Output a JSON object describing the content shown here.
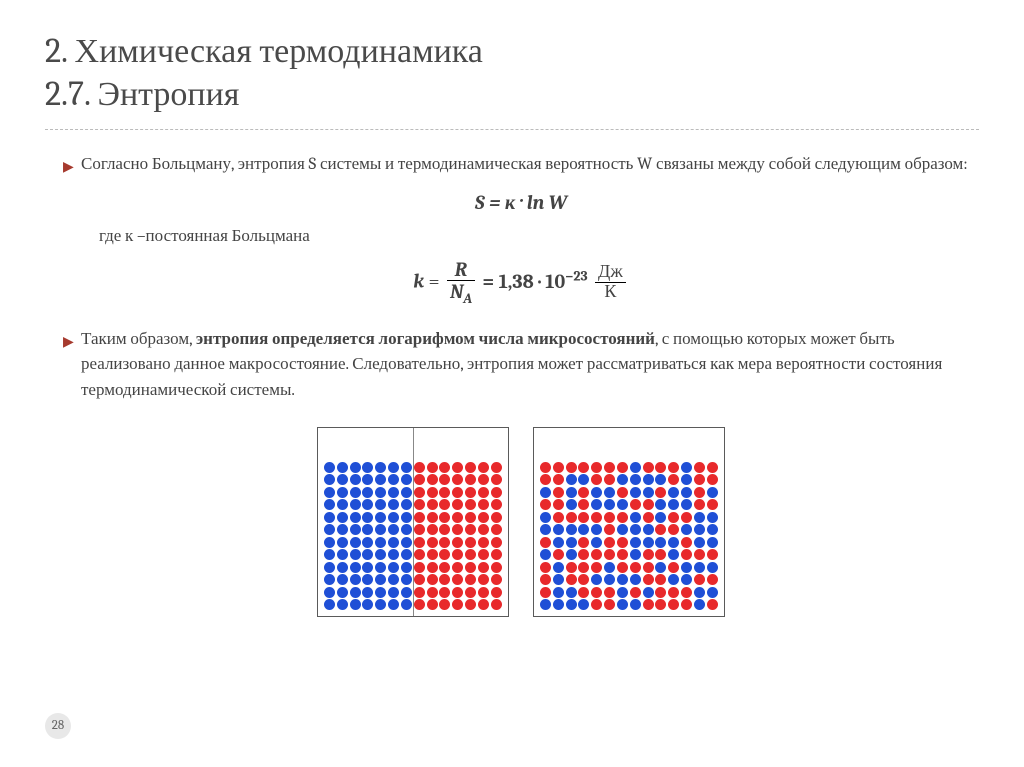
{
  "title_line1": "2. Химическая термодинамика",
  "title_line2": "2.7. Энтропия",
  "bullet1": "Согласно Больцману, энтропия S системы и термодинамическая вероятность W связаны между собой следующим образом:",
  "formula_main": "S = к · ln W",
  "sub_text": "где к –постоянная Больцмана",
  "formula_k": {
    "lhs": "k",
    "frac_num": "R",
    "frac_den": "N",
    "frac_den_sub": "A",
    "eq_val": "= 1,38 · 10",
    "exp": "−23",
    "unit_num": "Дж",
    "unit_den": "К"
  },
  "bullet2_pre": "Таким образом, ",
  "bullet2_bold": "энтропия определяется логарифмом числа микросостояний",
  "bullet2_post": ", с помощью которых может быть реализовано данное макросостояние. Следовательно, энтропия может рассматриваться как мера вероятности состояния термодинамической системы.",
  "page_number": "28",
  "diagram": {
    "cols": 14,
    "rows": 12,
    "colors": {
      "blue": "#1f4fd6",
      "red": "#e8292b"
    }
  }
}
